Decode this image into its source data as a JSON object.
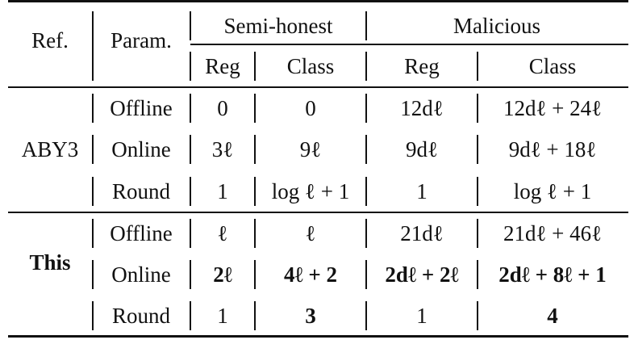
{
  "table": {
    "header": {
      "ref": "Ref.",
      "param": "Param.",
      "semi_honest": "Semi-honest",
      "malicious": "Malicious",
      "sub": [
        "Reg",
        "Class",
        "Reg",
        "Class"
      ]
    },
    "groups": [
      {
        "ref": "ABY3",
        "ref_bold": false,
        "rows": [
          {
            "param": "Offline",
            "cells": [
              "0",
              "0",
              "12dℓ",
              "12dℓ + 24ℓ"
            ],
            "bold": [
              false,
              false,
              false,
              false
            ]
          },
          {
            "param": "Online",
            "cells": [
              "3ℓ",
              "9ℓ",
              "9dℓ",
              "9dℓ + 18ℓ"
            ],
            "bold": [
              false,
              false,
              false,
              false
            ]
          },
          {
            "param": "Round",
            "cells": [
              "1",
              "log ℓ + 1",
              "1",
              "log ℓ + 1"
            ],
            "bold": [
              false,
              false,
              false,
              false
            ]
          }
        ]
      },
      {
        "ref": "This",
        "ref_bold": true,
        "rows": [
          {
            "param": "Offline",
            "cells": [
              "ℓ",
              "ℓ",
              "21dℓ",
              "21dℓ + 46ℓ"
            ],
            "bold": [
              false,
              false,
              false,
              false
            ]
          },
          {
            "param": "Online",
            "cells": [
              "2ℓ",
              "4ℓ + 2",
              "2dℓ + 2ℓ",
              "2dℓ + 8ℓ + 1"
            ],
            "bold": [
              true,
              true,
              true,
              true
            ]
          },
          {
            "param": "Round",
            "cells": [
              "1",
              "3",
              "1",
              "4"
            ],
            "bold": [
              false,
              true,
              false,
              true
            ]
          }
        ]
      }
    ]
  }
}
